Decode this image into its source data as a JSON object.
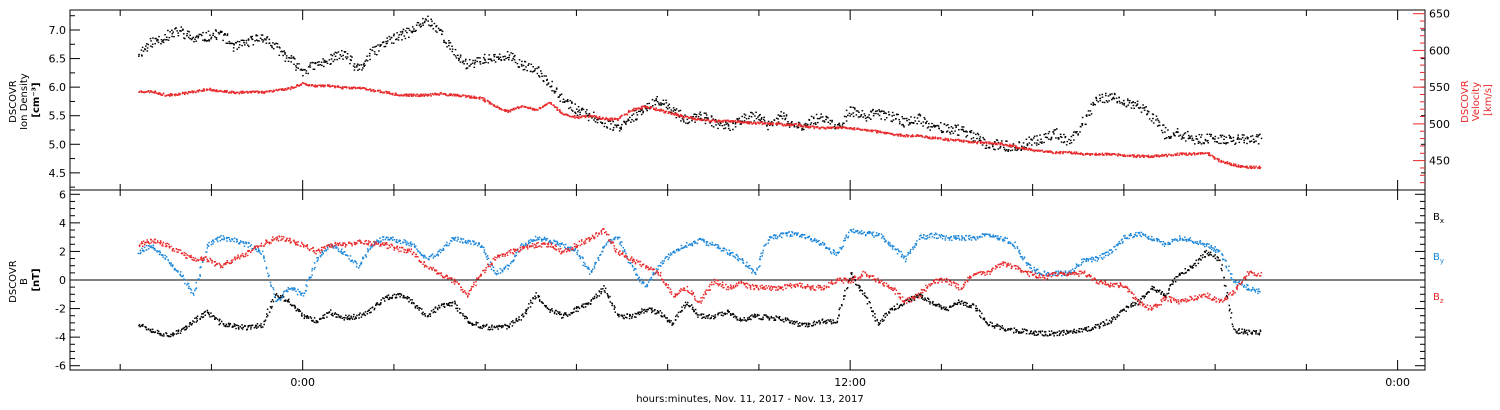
{
  "chart_data": [
    {
      "type": "scatter",
      "panel": "top",
      "ylabel": [
        "DSCOVR",
        "Ion Density",
        "[cm⁻³]"
      ],
      "y2label": [
        "DSCOVR",
        "Velocity",
        "[km/s]"
      ],
      "ylim": [
        4.2,
        7.35
      ],
      "y2lim": [
        410,
        655
      ],
      "yticks": [
        4.5,
        5.0,
        5.5,
        6.0,
        6.5,
        7.0
      ],
      "y2ticks": [
        450,
        500,
        550,
        600,
        650
      ],
      "ytick_labels": [
        "4.5",
        "5.0",
        "5.5",
        "6.0",
        "6.5",
        "7.0"
      ],
      "y2tick_labels": [
        "450",
        "500",
        "550",
        "600",
        "650"
      ],
      "left_color": "#000000",
      "right_color": "#e8282a",
      "series": [
        {
          "axis": "left",
          "color": "#000000",
          "x": [
            -3.6,
            -3.3,
            -3.0,
            -2.7,
            -2.4,
            -2.1,
            -1.8,
            -1.5,
            -1.2,
            -0.9,
            -0.6,
            -0.3,
            0.0,
            0.3,
            0.6,
            0.9,
            1.2,
            1.5,
            1.8,
            2.1,
            2.4,
            2.7,
            3.0,
            3.3,
            3.6,
            3.9,
            4.2,
            4.5,
            4.8,
            5.1,
            5.4,
            5.7,
            6.0,
            6.3,
            6.6,
            6.9,
            7.2,
            7.5,
            7.8,
            8.1,
            8.4,
            8.7,
            9.0,
            9.3,
            9.6,
            9.9,
            10.2,
            10.5,
            10.8,
            11.1,
            11.4,
            11.7,
            12.0,
            12.3,
            12.6,
            12.9,
            13.2,
            13.5,
            13.8,
            14.1,
            14.4,
            14.7,
            15.0,
            15.3,
            15.6,
            15.9,
            16.2,
            16.5,
            16.8,
            17.1,
            17.4,
            17.7,
            18.0,
            18.3,
            18.6,
            18.9,
            19.2,
            19.5,
            19.8,
            20.1,
            20.4,
            20.7,
            21.0
          ],
          "y": [
            6.6,
            6.8,
            6.9,
            7.0,
            6.85,
            6.9,
            6.95,
            6.7,
            6.8,
            6.9,
            6.7,
            6.5,
            6.3,
            6.4,
            6.5,
            6.6,
            6.3,
            6.6,
            6.8,
            6.9,
            7.0,
            7.2,
            7.0,
            6.6,
            6.4,
            6.5,
            6.5,
            6.55,
            6.4,
            6.3,
            6.1,
            5.8,
            5.6,
            5.5,
            5.4,
            5.3,
            5.5,
            5.6,
            5.8,
            5.6,
            5.45,
            5.5,
            5.4,
            5.3,
            5.45,
            5.5,
            5.35,
            5.5,
            5.3,
            5.4,
            5.5,
            5.3,
            5.6,
            5.5,
            5.55,
            5.5,
            5.4,
            5.45,
            5.3,
            5.3,
            5.25,
            5.15,
            5.0,
            5.0,
            4.95,
            5.05,
            5.1,
            5.2,
            5.05,
            5.4,
            5.8,
            5.85,
            5.75,
            5.7,
            5.5,
            5.2,
            5.2,
            5.1,
            5.1,
            5.1,
            5.1,
            5.1,
            5.1
          ]
        },
        {
          "axis": "right",
          "color": "#e8282a",
          "x": [
            -3.6,
            -3.3,
            -3.0,
            -2.7,
            -2.4,
            -2.1,
            -1.8,
            -1.5,
            -1.2,
            -0.9,
            -0.6,
            -0.3,
            0.0,
            0.3,
            0.6,
            0.9,
            1.2,
            1.5,
            1.8,
            2.1,
            2.4,
            2.7,
            3.0,
            3.3,
            3.6,
            3.9,
            4.2,
            4.5,
            4.8,
            5.1,
            5.4,
            5.7,
            6.0,
            6.3,
            6.6,
            6.9,
            7.2,
            7.5,
            7.8,
            8.1,
            8.4,
            8.7,
            9.0,
            9.3,
            9.6,
            9.9,
            10.2,
            10.5,
            10.8,
            11.1,
            11.4,
            11.7,
            12.0,
            12.3,
            12.6,
            12.9,
            13.2,
            13.5,
            13.8,
            14.1,
            14.4,
            14.7,
            15.0,
            15.3,
            15.6,
            15.9,
            16.2,
            16.5,
            16.8,
            17.1,
            17.4,
            17.7,
            18.0,
            18.3,
            18.6,
            18.9,
            19.2,
            19.5,
            19.8,
            20.1,
            20.4,
            20.7,
            21.0
          ],
          "y": [
            545,
            545,
            540,
            542,
            545,
            548,
            546,
            543,
            545,
            544,
            547,
            549,
            556,
            552,
            553,
            550,
            550,
            547,
            544,
            540,
            540,
            540,
            542,
            540,
            538,
            536,
            525,
            518,
            525,
            520,
            530,
            514,
            510,
            512,
            508,
            507,
            520,
            525,
            520,
            515,
            510,
            507,
            505,
            505,
            503,
            502,
            502,
            500,
            500,
            497,
            495,
            496,
            495,
            493,
            490,
            487,
            485,
            485,
            482,
            480,
            478,
            476,
            475,
            474,
            470,
            466,
            464,
            462,
            462,
            460,
            460,
            460,
            458,
            457,
            457,
            458,
            460,
            460,
            462,
            450,
            445,
            442,
            442
          ]
        }
      ]
    },
    {
      "type": "scatter",
      "panel": "bottom",
      "ylabel": [
        "DSCOVR",
        "B",
        "[nT]"
      ],
      "ylim": [
        -6.3,
        6.3
      ],
      "yticks": [
        -6,
        -4,
        -2,
        0,
        2,
        4,
        6
      ],
      "ytick_labels": [
        "-6",
        "-4",
        "-2",
        "0",
        "2",
        "4",
        "6"
      ],
      "zero_line": true,
      "legend_position": "right",
      "series": [
        {
          "name": "Bx",
          "name_base": "B",
          "name_sub": "x",
          "color": "#000000",
          "x": [
            -3.6,
            -3.3,
            -3.0,
            -2.7,
            -2.4,
            -2.1,
            -1.8,
            -1.5,
            -1.2,
            -0.9,
            -0.6,
            -0.3,
            0.0,
            0.3,
            0.6,
            0.9,
            1.2,
            1.5,
            1.8,
            2.1,
            2.4,
            2.7,
            3.0,
            3.3,
            3.6,
            3.9,
            4.2,
            4.5,
            4.8,
            5.1,
            5.4,
            5.7,
            6.0,
            6.3,
            6.6,
            6.9,
            7.2,
            7.5,
            7.8,
            8.1,
            8.4,
            8.7,
            9.0,
            9.3,
            9.6,
            9.9,
            10.2,
            10.5,
            10.8,
            11.1,
            11.4,
            11.7,
            12.0,
            12.3,
            12.6,
            12.9,
            13.2,
            13.5,
            13.8,
            14.1,
            14.4,
            14.7,
            15.0,
            15.3,
            15.6,
            15.9,
            16.2,
            16.5,
            16.8,
            17.1,
            17.4,
            17.7,
            18.0,
            18.3,
            18.6,
            18.9,
            19.2,
            19.5,
            19.8,
            20.1,
            20.4,
            20.7,
            21.0
          ],
          "y": [
            -3.0,
            -3.5,
            -3.8,
            -3.6,
            -2.8,
            -2.2,
            -3.0,
            -3.2,
            -3.3,
            -3.1,
            -1.0,
            -1.5,
            -2.5,
            -2.8,
            -2.2,
            -2.6,
            -2.5,
            -2.0,
            -1.2,
            -1.0,
            -1.5,
            -2.5,
            -1.8,
            -1.6,
            -2.8,
            -3.2,
            -3.3,
            -3.2,
            -2.5,
            -1.0,
            -2.0,
            -2.5,
            -2.0,
            -1.5,
            -0.5,
            -2.5,
            -2.5,
            -2.0,
            -2.2,
            -3.0,
            -1.5,
            -2.5,
            -2.5,
            -2.2,
            -2.8,
            -2.5,
            -2.6,
            -2.7,
            -3.0,
            -3.1,
            -2.8,
            -2.9,
            0.5,
            -1.0,
            -3.0,
            -2.0,
            -1.5,
            -1.0,
            -1.6,
            -2.0,
            -1.5,
            -1.8,
            -3.0,
            -3.3,
            -3.5,
            -3.6,
            -3.7,
            -3.7,
            -3.6,
            -3.5,
            -3.2,
            -2.8,
            -2.0,
            -1.5,
            -0.5,
            -1.0,
            0.5,
            1.0,
            2.0,
            1.5,
            -3.5,
            -3.6,
            -3.6
          ]
        },
        {
          "name": "By",
          "name_base": "B",
          "name_sub": "y",
          "color": "#1a85d8",
          "x": [
            -3.6,
            -3.3,
            -3.0,
            -2.7,
            -2.4,
            -2.1,
            -1.8,
            -1.5,
            -1.2,
            -0.9,
            -0.6,
            -0.3,
            0.0,
            0.3,
            0.6,
            0.9,
            1.2,
            1.5,
            1.8,
            2.1,
            2.4,
            2.7,
            3.0,
            3.3,
            3.6,
            3.9,
            4.2,
            4.5,
            4.8,
            5.1,
            5.4,
            5.7,
            6.0,
            6.3,
            6.6,
            6.9,
            7.2,
            7.5,
            7.8,
            8.1,
            8.4,
            8.7,
            9.0,
            9.3,
            9.6,
            9.9,
            10.2,
            10.5,
            10.8,
            11.1,
            11.4,
            11.7,
            12.0,
            12.3,
            12.6,
            12.9,
            13.2,
            13.5,
            13.8,
            14.1,
            14.4,
            14.7,
            15.0,
            15.3,
            15.6,
            15.9,
            16.2,
            16.5,
            16.8,
            17.1,
            17.4,
            17.7,
            18.0,
            18.3,
            18.6,
            18.9,
            19.2,
            19.5,
            19.8,
            20.1,
            20.4,
            20.7,
            21.0
          ],
          "y": [
            2.0,
            2.5,
            1.5,
            0.5,
            -1.0,
            2.5,
            3.0,
            2.8,
            2.5,
            2.0,
            -1.5,
            -0.5,
            -1.0,
            1.5,
            2.5,
            2.0,
            1.0,
            2.5,
            3.0,
            2.8,
            2.5,
            1.5,
            2.0,
            3.0,
            2.7,
            2.5,
            0.5,
            1.0,
            2.5,
            3.0,
            2.8,
            2.5,
            2.0,
            0.5,
            2.5,
            3.0,
            1.0,
            -0.5,
            1.0,
            2.0,
            2.5,
            2.8,
            2.5,
            2.0,
            1.5,
            0.5,
            3.0,
            3.2,
            3.3,
            3.0,
            2.5,
            1.8,
            3.5,
            3.3,
            3.2,
            2.5,
            1.5,
            3.0,
            3.2,
            3.0,
            3.0,
            3.0,
            3.2,
            3.0,
            2.5,
            1.0,
            0.5,
            0.5,
            0.5,
            1.5,
            1.5,
            2.0,
            3.0,
            3.3,
            3.0,
            2.5,
            3.0,
            2.8,
            2.5,
            2.0,
            0.0,
            -0.5,
            -0.8
          ]
        },
        {
          "name": "Bz",
          "name_base": "B",
          "name_sub": "z",
          "color": "#e8282a",
          "x": [
            -3.6,
            -3.3,
            -3.0,
            -2.7,
            -2.4,
            -2.1,
            -1.8,
            -1.5,
            -1.2,
            -0.9,
            -0.6,
            -0.3,
            0.0,
            0.3,
            0.6,
            0.9,
            1.2,
            1.5,
            1.8,
            2.1,
            2.4,
            2.7,
            3.0,
            3.3,
            3.6,
            3.9,
            4.2,
            4.5,
            4.8,
            5.1,
            5.4,
            5.7,
            6.0,
            6.3,
            6.6,
            6.9,
            7.2,
            7.5,
            7.8,
            8.1,
            8.4,
            8.7,
            9.0,
            9.3,
            9.6,
            9.9,
            10.2,
            10.5,
            10.8,
            11.1,
            11.4,
            11.7,
            12.0,
            12.3,
            12.6,
            12.9,
            13.2,
            13.5,
            13.8,
            14.1,
            14.4,
            14.7,
            15.0,
            15.3,
            15.6,
            15.9,
            16.2,
            16.5,
            16.8,
            17.1,
            17.4,
            17.7,
            18.0,
            18.3,
            18.6,
            18.9,
            19.2,
            19.5,
            19.8,
            20.1,
            20.4,
            20.7,
            21.0
          ],
          "y": [
            2.5,
            2.8,
            2.5,
            2.0,
            1.5,
            1.5,
            1.0,
            1.5,
            2.0,
            2.5,
            3.0,
            2.8,
            2.5,
            2.0,
            2.5,
            2.5,
            2.7,
            2.6,
            2.5,
            2.2,
            2.0,
            1.0,
            0.5,
            0.0,
            -1.0,
            0.5,
            1.5,
            2.0,
            2.2,
            2.5,
            2.5,
            2.0,
            2.5,
            3.0,
            3.5,
            2.0,
            1.5,
            1.0,
            0.5,
            -1.0,
            -0.5,
            -1.5,
            0.0,
            -0.5,
            -0.2,
            -0.5,
            -0.5,
            -0.5,
            -0.3,
            -0.5,
            -0.5,
            0.0,
            0.0,
            0.5,
            0.0,
            -0.5,
            -1.5,
            -1.0,
            0.0,
            0.0,
            -0.5,
            0.5,
            0.5,
            1.2,
            1.0,
            0.5,
            0.2,
            0.5,
            0.5,
            0.5,
            0.0,
            -0.3,
            -0.3,
            -1.5,
            -2.0,
            -1.2,
            -1.5,
            -1.2,
            -1.0,
            -1.5,
            -0.8,
            0.5,
            0.5
          ]
        }
      ]
    }
  ],
  "x_axis": {
    "range_hours": [
      -5.1,
      24.6
    ],
    "major_ticks": [
      0,
      12,
      24
    ],
    "major_tick_labels": [
      "0:00",
      "12:00",
      "0:00"
    ],
    "minor_step_hours": 2,
    "label": "hours:minutes, Nov. 11, 2017 - Nov. 13, 2017"
  }
}
